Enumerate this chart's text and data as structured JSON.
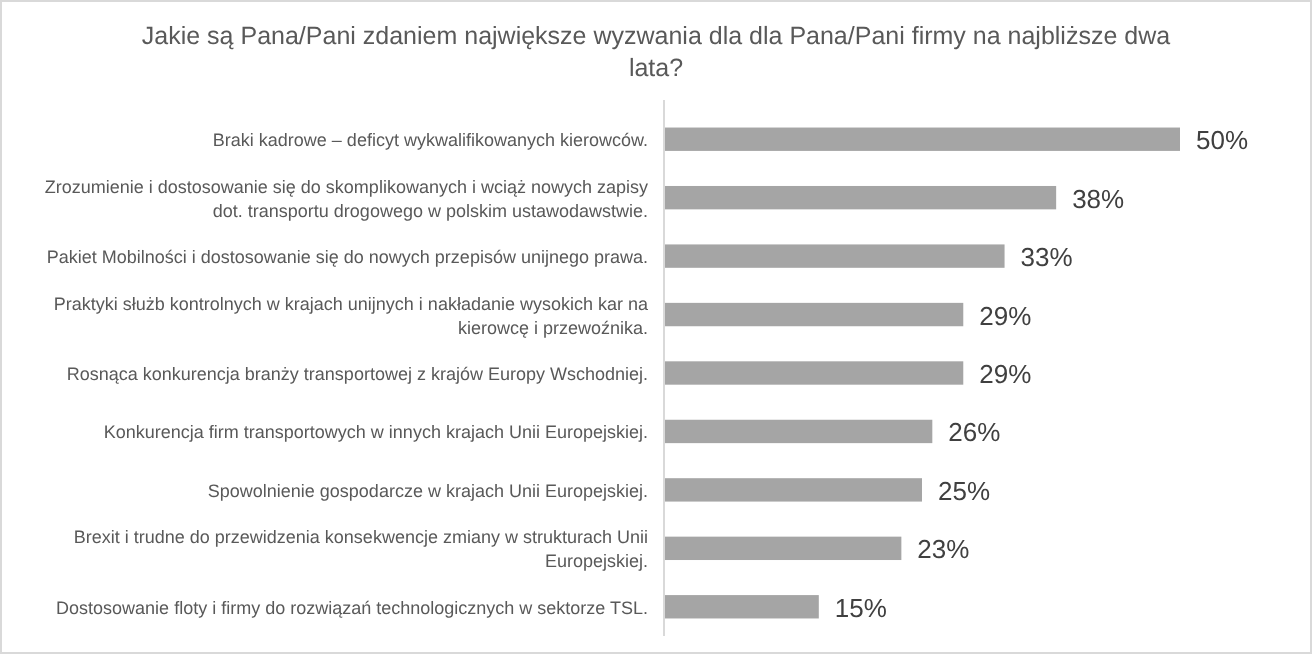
{
  "chart_data": {
    "type": "bar",
    "orientation": "horizontal",
    "title": "Jakie są Pana/Pani zdaniem największe wyzwania dla dla Pana/Pani firmy na najbliższe dwa lata?",
    "categories": [
      "Braki kadrowe – deficyt wykwalifikowanych kierowców.",
      "Zrozumienie i dostosowanie się do skomplikowanych i wciąż nowych zapisy dot. transportu drogowego w polskim ustawodawstwie.",
      "Pakiet Mobilności i dostosowanie się do nowych przepisów unijnego prawa.",
      "Praktyki służb kontrolnych w krajach unijnych i nakładanie wysokich kar na kierowcę i przewoźnika.",
      "Rosnąca konkurencja branży transportowej z krajów Europy Wschodniej.",
      "Konkurencja firm transportowych w innych krajach Unii Europejskiej.",
      "Spowolnienie gospodarcze w krajach Unii Europejskiej.",
      "Brexit i trudne do przewidzenia konsekwencje zmiany w strukturach Unii Europejskiej.",
      "Dostosowanie floty i firmy do rozwiązań technologicznych w sektorze TSL."
    ],
    "values": [
      50,
      38,
      33,
      29,
      29,
      26,
      25,
      23,
      15
    ],
    "value_labels": [
      "50%",
      "38%",
      "33%",
      "29%",
      "29%",
      "26%",
      "25%",
      "23%",
      "15%"
    ],
    "color": "#a5a5a5"
  }
}
